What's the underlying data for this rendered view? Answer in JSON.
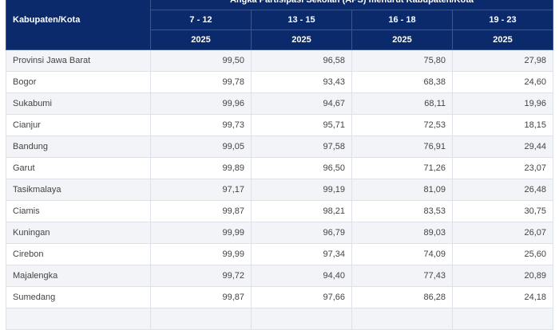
{
  "table": {
    "title": "Angka Partisipasi Sekolah (APS) menurut Kabupaten/Kota",
    "row_header": "Kabupaten/Kota",
    "age_groups": [
      "7 - 12",
      "13 - 15",
      "16 - 18",
      "19 - 23"
    ],
    "years": [
      "2025",
      "2025",
      "2025",
      "2025"
    ],
    "rows": [
      {
        "name": "Provinsi Jawa Barat",
        "values": [
          "99,50",
          "96,58",
          "75,80",
          "27,98"
        ]
      },
      {
        "name": "Bogor",
        "values": [
          "99,78",
          "93,43",
          "68,38",
          "24,60"
        ]
      },
      {
        "name": "Sukabumi",
        "values": [
          "99,96",
          "94,67",
          "68,11",
          "19,96"
        ]
      },
      {
        "name": "Cianjur",
        "values": [
          "99,73",
          "95,71",
          "72,53",
          "18,15"
        ]
      },
      {
        "name": "Bandung",
        "values": [
          "99,05",
          "97,58",
          "76,91",
          "29,44"
        ]
      },
      {
        "name": "Garut",
        "values": [
          "99,89",
          "96,50",
          "71,26",
          "23,07"
        ]
      },
      {
        "name": "Tasikmalaya",
        "values": [
          "97,17",
          "99,19",
          "81,09",
          "26,48"
        ]
      },
      {
        "name": "Ciamis",
        "values": [
          "99,87",
          "98,21",
          "83,53",
          "30,75"
        ]
      },
      {
        "name": "Kuningan",
        "values": [
          "99,99",
          "96,79",
          "89,03",
          "26,07"
        ]
      },
      {
        "name": "Cirebon",
        "values": [
          "99,99",
          "97,34",
          "74,09",
          "25,60"
        ]
      },
      {
        "name": "Majalengka",
        "values": [
          "99,72",
          "94,40",
          "77,43",
          "20,89"
        ]
      },
      {
        "name": "Sumedang",
        "values": [
          "99,87",
          "97,66",
          "86,28",
          "24,18"
        ]
      }
    ]
  },
  "colors": {
    "header_bg": "#0b2a6b",
    "row_alt": "#f2f4f8"
  }
}
